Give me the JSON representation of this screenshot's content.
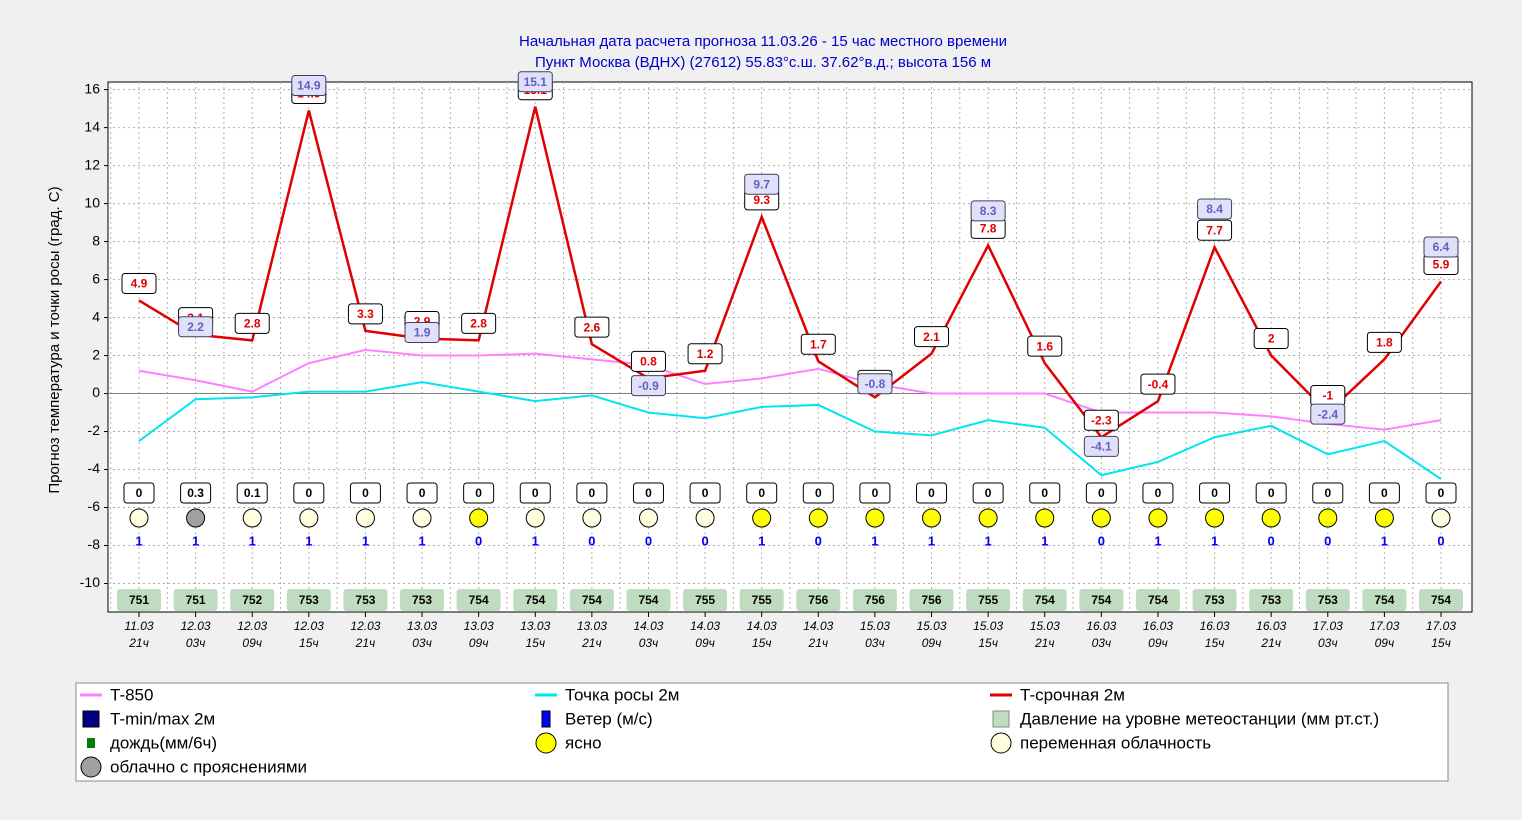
{
  "chart_data": {
    "type": "line",
    "title": [
      "Начальная дата расчета прогноза 11.03.26 - 15 час местного времени",
      "Пункт  Москва (ВДНХ) (27612)   55.83°с.ш.  37.62°в.д.; высота 156 м"
    ],
    "y_label": "Прогноз температура и точки росы (град. С)",
    "categories": [
      [
        "11.03",
        "21ч"
      ],
      [
        "12.03",
        "03ч"
      ],
      [
        "12.03",
        "09ч"
      ],
      [
        "12.03",
        "15ч"
      ],
      [
        "12.03",
        "21ч"
      ],
      [
        "13.03",
        "03ч"
      ],
      [
        "13.03",
        "09ч"
      ],
      [
        "13.03",
        "15ч"
      ],
      [
        "13.03",
        "21ч"
      ],
      [
        "14.03",
        "03ч"
      ],
      [
        "14.03",
        "09ч"
      ],
      [
        "14.03",
        "15ч"
      ],
      [
        "14.03",
        "21ч"
      ],
      [
        "15.03",
        "03ч"
      ],
      [
        "15.03",
        "09ч"
      ],
      [
        "15.03",
        "15ч"
      ],
      [
        "15.03",
        "21ч"
      ],
      [
        "16.03",
        "03ч"
      ],
      [
        "16.03",
        "09ч"
      ],
      [
        "16.03",
        "15ч"
      ],
      [
        "16.03",
        "21ч"
      ],
      [
        "17.03",
        "03ч"
      ],
      [
        "17.03",
        "09ч"
      ],
      [
        "17.03",
        "15ч"
      ]
    ],
    "ylim": [
      -11.5,
      16.4
    ],
    "yticks": [
      -10,
      -8,
      -6,
      -4,
      -2,
      0,
      2,
      4,
      6,
      8,
      10,
      12,
      14,
      16
    ],
    "grid": true,
    "series": [
      {
        "name": "T-850",
        "color": "#ff80ff",
        "style": "line",
        "values": [
          1.2,
          0.7,
          0.1,
          1.6,
          2.3,
          2.0,
          2.0,
          2.1,
          1.8,
          1.5,
          0.5,
          0.8,
          1.3,
          0.5,
          0.0,
          0.0,
          0.0,
          -1.0,
          -1.0,
          -1.0,
          -1.2,
          -1.6,
          -1.9,
          -1.4
        ]
      },
      {
        "name": "Точка росы 2м",
        "color": "#00e5ee",
        "style": "line",
        "values": [
          -2.5,
          -0.3,
          -0.2,
          0.1,
          0.1,
          0.6,
          0.1,
          -0.4,
          -0.1,
          -1.0,
          -1.3,
          -0.7,
          -0.6,
          -2.0,
          -2.2,
          -1.4,
          -1.8,
          -4.3,
          -3.6,
          -2.3,
          -1.7,
          -3.2,
          -2.5,
          -4.5
        ]
      },
      {
        "name": "T-срочная 2м",
        "color": "#e00000",
        "style": "line",
        "values": [
          4.9,
          3.1,
          2.8,
          14.9,
          3.3,
          2.9,
          2.8,
          15.1,
          2.6,
          0.8,
          1.2,
          9.3,
          1.7,
          -0.2,
          2.1,
          7.8,
          1.6,
          -2.3,
          -0.4,
          7.7,
          2,
          -1,
          1.8,
          5.9
        ]
      },
      {
        "name": "T-min/max 2м",
        "color": "#000080",
        "style": "label",
        "values": [
          null,
          2.2,
          null,
          14.9,
          null,
          1.9,
          null,
          15.1,
          null,
          -0.9,
          null,
          9.7,
          null,
          -0.8,
          null,
          8.3,
          null,
          -4.1,
          null,
          8.4,
          null,
          -2.4,
          null,
          6.4
        ]
      },
      {
        "name": "Ветер (м/с)",
        "color": "#0000ff",
        "style": "wind",
        "values": [
          1,
          1,
          1,
          1,
          1,
          1,
          0,
          1,
          0,
          0,
          0,
          1,
          0,
          1,
          1,
          1,
          1,
          0,
          1,
          1,
          0,
          0,
          1,
          0
        ]
      },
      {
        "name": "Давление на уровне метеостанции (мм рт.ст.)",
        "color": "#c0dcc0",
        "style": "pressure",
        "values": [
          751,
          751,
          752,
          753,
          753,
          753,
          754,
          754,
          754,
          754,
          755,
          755,
          756,
          756,
          756,
          755,
          754,
          754,
          754,
          753,
          753,
          753,
          754,
          754
        ]
      },
      {
        "name": "дождь(мм/6ч)",
        "color": "#008000",
        "style": "rain",
        "values": [
          0,
          0.3,
          0.1,
          0,
          0,
          0,
          0,
          0,
          0,
          0,
          0,
          0,
          0,
          0,
          0,
          0,
          0,
          0,
          0,
          0,
          0,
          0,
          0,
          0
        ]
      }
    ],
    "sky_types": [
      {
        "name": "ясно",
        "color": "#ffff00"
      },
      {
        "name": "переменная облачность",
        "color": "#ffffe0"
      },
      {
        "name": "облачно с прояснениями",
        "color": "#a0a0a0"
      }
    ],
    "sky": [
      "переменная облачность",
      "облачно с прояснениями",
      "переменная облачность",
      "переменная облачность",
      "переменная облачность",
      "переменная облачность",
      "ясно",
      "переменная облачность",
      "переменная облачность",
      "переменная облачность",
      "переменная облачность",
      "ясно",
      "ясно",
      "ясно",
      "ясно",
      "ясно",
      "ясно",
      "ясно",
      "ясно",
      "ясно",
      "ясно",
      "ясно",
      "ясно",
      "переменная облачность"
    ]
  }
}
